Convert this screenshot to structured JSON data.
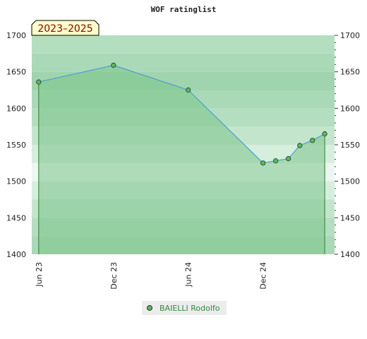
{
  "chart_data": {
    "type": "area",
    "title": "WOF ratinglist",
    "badge": "2023–2025",
    "ylim": [
      1400,
      1700
    ],
    "yticks": [
      "1700",
      "1650",
      "1600",
      "1550",
      "1500",
      "1450",
      "1400"
    ],
    "xticks": [
      {
        "label": "Jun 23",
        "date": "2023-06-01"
      },
      {
        "label": "Dec 23",
        "date": "2023-12-01"
      },
      {
        "label": "Jun 24",
        "date": "2024-06-01"
      },
      {
        "label": "Dec 24",
        "date": "2024-12-01"
      }
    ],
    "xlim": [
      "2023-05-15",
      "2025-05-25"
    ],
    "series": [
      {
        "name": "BAIELLI Rodolfo",
        "points": [
          {
            "x": "2023-06-01",
            "y": 1636
          },
          {
            "x": "2023-12-01",
            "y": 1659
          },
          {
            "x": "2024-06-01",
            "y": 1625
          },
          {
            "x": "2024-12-01",
            "y": 1525
          },
          {
            "x": "2025-01-01",
            "y": 1528
          },
          {
            "x": "2025-02-01",
            "y": 1531
          },
          {
            "x": "2025-03-01",
            "y": 1549
          },
          {
            "x": "2025-04-01",
            "y": 1556
          },
          {
            "x": "2025-05-01",
            "y": 1565
          }
        ]
      }
    ],
    "legend": "bottom-center",
    "colors": {
      "area": "#7cc48a",
      "line": "#4a9fd4",
      "marker": "#5cb85c",
      "band_dark": "#b2dcc0",
      "band_light": "#e9f5ec"
    }
  }
}
